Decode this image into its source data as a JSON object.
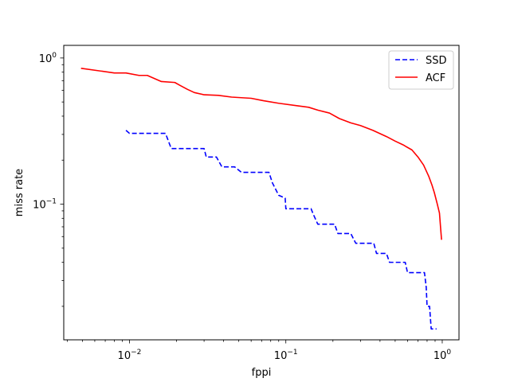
{
  "chart_data": {
    "type": "line",
    "title": "",
    "xlabel": "fppi",
    "ylabel": "miss rate",
    "xscale": "log",
    "yscale": "log",
    "xlim": [
      0.0038,
      1.28
    ],
    "ylim": [
      0.0118,
      1.22
    ],
    "grid": false,
    "legend_position": "top-right",
    "x_ticks": [
      {
        "value": 0.01,
        "base": "10",
        "exp": "−2"
      },
      {
        "value": 0.1,
        "base": "10",
        "exp": "−1"
      },
      {
        "value": 1,
        "base": "10",
        "exp": "0"
      }
    ],
    "y_ticks": [
      {
        "value": 0.1,
        "base": "10",
        "exp": "−1"
      },
      {
        "value": 1,
        "base": "10",
        "exp": "0"
      }
    ],
    "series": [
      {
        "name": "SSD",
        "color": "#0000ff",
        "style": "dashed",
        "step": true,
        "points": [
          [
            0.0095,
            0.32
          ],
          [
            0.01,
            0.305
          ],
          [
            0.017,
            0.305
          ],
          [
            0.0185,
            0.24
          ],
          [
            0.03,
            0.24
          ],
          [
            0.031,
            0.21
          ],
          [
            0.036,
            0.21
          ],
          [
            0.039,
            0.18
          ],
          [
            0.047,
            0.18
          ],
          [
            0.052,
            0.165
          ],
          [
            0.078,
            0.165
          ],
          [
            0.082,
            0.14
          ],
          [
            0.09,
            0.115
          ],
          [
            0.099,
            0.11
          ],
          [
            0.1,
            0.093
          ],
          [
            0.145,
            0.093
          ],
          [
            0.15,
            0.085
          ],
          [
            0.16,
            0.073
          ],
          [
            0.205,
            0.073
          ],
          [
            0.215,
            0.063
          ],
          [
            0.26,
            0.063
          ],
          [
            0.28,
            0.054
          ],
          [
            0.365,
            0.054
          ],
          [
            0.38,
            0.046
          ],
          [
            0.44,
            0.046
          ],
          [
            0.46,
            0.04
          ],
          [
            0.58,
            0.04
          ],
          [
            0.6,
            0.034
          ],
          [
            0.77,
            0.034
          ],
          [
            0.79,
            0.027
          ],
          [
            0.8,
            0.02
          ],
          [
            0.83,
            0.02
          ],
          [
            0.85,
            0.014
          ],
          [
            0.92,
            0.014
          ]
        ]
      },
      {
        "name": "ACF",
        "color": "#ff0000",
        "style": "solid",
        "step": false,
        "points": [
          [
            0.0049,
            0.85
          ],
          [
            0.008,
            0.79
          ],
          [
            0.0095,
            0.79
          ],
          [
            0.0115,
            0.76
          ],
          [
            0.013,
            0.76
          ],
          [
            0.016,
            0.69
          ],
          [
            0.0195,
            0.68
          ],
          [
            0.021,
            0.65
          ],
          [
            0.0235,
            0.61
          ],
          [
            0.026,
            0.58
          ],
          [
            0.03,
            0.56
          ],
          [
            0.037,
            0.555
          ],
          [
            0.045,
            0.54
          ],
          [
            0.06,
            0.53
          ],
          [
            0.072,
            0.51
          ],
          [
            0.09,
            0.49
          ],
          [
            0.12,
            0.47
          ],
          [
            0.14,
            0.46
          ],
          [
            0.16,
            0.44
          ],
          [
            0.19,
            0.42
          ],
          [
            0.22,
            0.385
          ],
          [
            0.26,
            0.36
          ],
          [
            0.3,
            0.345
          ],
          [
            0.36,
            0.32
          ],
          [
            0.44,
            0.29
          ],
          [
            0.5,
            0.27
          ],
          [
            0.56,
            0.255
          ],
          [
            0.64,
            0.235
          ],
          [
            0.7,
            0.21
          ],
          [
            0.76,
            0.185
          ],
          [
            0.82,
            0.155
          ],
          [
            0.86,
            0.135
          ],
          [
            0.89,
            0.12
          ],
          [
            0.93,
            0.1
          ],
          [
            0.96,
            0.087
          ],
          [
            0.975,
            0.07
          ],
          [
            0.99,
            0.057
          ]
        ]
      }
    ]
  }
}
